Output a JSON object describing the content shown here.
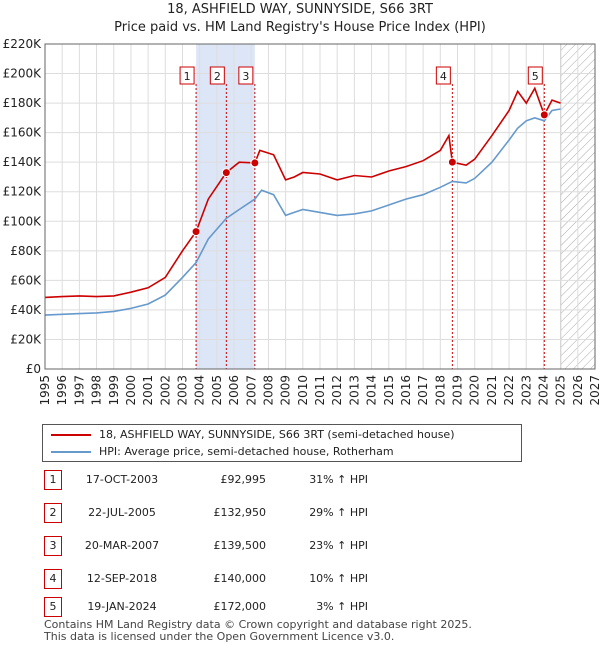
{
  "title": "18, ASHFIELD WAY, SUNNYSIDE, S66 3RT",
  "subtitle": "Price paid vs. HM Land Registry's House Price Index (HPI)",
  "colors": {
    "red": "#cc0000",
    "blue": "#6699cc",
    "shade": "#dde6f7",
    "grid": "#dddddd"
  },
  "chart_data": {
    "type": "line",
    "xlim": [
      1995,
      2027
    ],
    "ylim": [
      0,
      220000
    ],
    "x_ticks": [
      "1995",
      "1996",
      "1997",
      "1998",
      "1999",
      "2000",
      "2001",
      "2002",
      "2003",
      "2004",
      "2005",
      "2006",
      "2007",
      "2008",
      "2009",
      "2010",
      "2011",
      "2012",
      "2013",
      "2014",
      "2015",
      "2016",
      "2017",
      "2018",
      "2019",
      "2020",
      "2021",
      "2022",
      "2023",
      "2024",
      "2025",
      "2026",
      "2027"
    ],
    "y_ticks": [
      {
        "value": 0,
        "label": "£0"
      },
      {
        "value": 20000,
        "label": "£20K"
      },
      {
        "value": 40000,
        "label": "£40K"
      },
      {
        "value": 60000,
        "label": "£60K"
      },
      {
        "value": 80000,
        "label": "£80K"
      },
      {
        "value": 100000,
        "label": "£100K"
      },
      {
        "value": 120000,
        "label": "£120K"
      },
      {
        "value": 140000,
        "label": "£140K"
      },
      {
        "value": 160000,
        "label": "£160K"
      },
      {
        "value": 180000,
        "label": "£180K"
      },
      {
        "value": 200000,
        "label": "£200K"
      },
      {
        "value": 220000,
        "label": "£220K"
      }
    ],
    "shaded_range": [
      2003.79,
      2007.21
    ],
    "future_hatch_from": 2025.0,
    "series": [
      {
        "name": "18, ASHFIELD WAY, SUNNYSIDE, S66 3RT (semi-detached house)",
        "color": "#cc0000",
        "points": [
          [
            1995,
            48500
          ],
          [
            1996,
            49000
          ],
          [
            1997,
            49500
          ],
          [
            1998,
            49000
          ],
          [
            1999,
            49500
          ],
          [
            2000,
            52000
          ],
          [
            2001,
            55000
          ],
          [
            2002,
            62000
          ],
          [
            2003,
            80000
          ],
          [
            2003.79,
            92995
          ],
          [
            2004.5,
            115000
          ],
          [
            2005.55,
            132950
          ],
          [
            2006.3,
            140000
          ],
          [
            2007.21,
            139500
          ],
          [
            2007.5,
            148000
          ],
          [
            2008.3,
            145000
          ],
          [
            2009,
            128000
          ],
          [
            2009.5,
            130000
          ],
          [
            2010,
            133000
          ],
          [
            2011,
            132000
          ],
          [
            2012,
            128000
          ],
          [
            2013,
            131000
          ],
          [
            2014,
            130000
          ],
          [
            2015,
            134000
          ],
          [
            2016,
            137000
          ],
          [
            2017,
            141000
          ],
          [
            2018,
            148000
          ],
          [
            2018.5,
            158000
          ],
          [
            2018.7,
            140000
          ],
          [
            2019.5,
            138000
          ],
          [
            2020,
            142000
          ],
          [
            2021,
            158000
          ],
          [
            2022,
            175000
          ],
          [
            2022.5,
            188000
          ],
          [
            2023,
            180000
          ],
          [
            2023.5,
            190000
          ],
          [
            2024.05,
            172000
          ],
          [
            2024.5,
            182000
          ],
          [
            2025.0,
            180000
          ]
        ]
      },
      {
        "name": "HPI: Average price, semi-detached house, Rotherham",
        "color": "#6699cc",
        "points": [
          [
            1995,
            36500
          ],
          [
            1996,
            37000
          ],
          [
            1997,
            37500
          ],
          [
            1998,
            38000
          ],
          [
            1999,
            39000
          ],
          [
            2000,
            41000
          ],
          [
            2001,
            44000
          ],
          [
            2002,
            50000
          ],
          [
            2003,
            62000
          ],
          [
            2003.79,
            72000
          ],
          [
            2004.5,
            88000
          ],
          [
            2005.55,
            102000
          ],
          [
            2006.3,
            108000
          ],
          [
            2007.21,
            115000
          ],
          [
            2007.6,
            121000
          ],
          [
            2008.3,
            118000
          ],
          [
            2009,
            104000
          ],
          [
            2009.5,
            106000
          ],
          [
            2010,
            108000
          ],
          [
            2011,
            106000
          ],
          [
            2012,
            104000
          ],
          [
            2013,
            105000
          ],
          [
            2014,
            107000
          ],
          [
            2015,
            111000
          ],
          [
            2016,
            115000
          ],
          [
            2017,
            118000
          ],
          [
            2018,
            123000
          ],
          [
            2018.7,
            127000
          ],
          [
            2019.5,
            126000
          ],
          [
            2020,
            129000
          ],
          [
            2021,
            140000
          ],
          [
            2022,
            155000
          ],
          [
            2022.5,
            163000
          ],
          [
            2023,
            168000
          ],
          [
            2023.5,
            170000
          ],
          [
            2024.05,
            168000
          ],
          [
            2024.5,
            175000
          ],
          [
            2025.0,
            176000
          ]
        ]
      }
    ],
    "sales": [
      {
        "num": "1",
        "x": 2003.79,
        "value": 92995
      },
      {
        "num": "2",
        "x": 2005.55,
        "value": 132950
      },
      {
        "num": "3",
        "x": 2007.21,
        "value": 139500
      },
      {
        "num": "4",
        "x": 2018.7,
        "value": 140000
      },
      {
        "num": "5",
        "x": 2024.05,
        "value": 172000
      }
    ]
  },
  "legend": {
    "red_label": "18, ASHFIELD WAY, SUNNYSIDE, S66 3RT (semi-detached house)",
    "blue_label": "HPI: Average price, semi-detached house, Rotherham"
  },
  "sales_table": [
    {
      "num": "1",
      "date": "17-OCT-2003",
      "price": "£92,995",
      "hpi": "31% ↑ HPI"
    },
    {
      "num": "2",
      "date": "22-JUL-2005",
      "price": "£132,950",
      "hpi": "29% ↑ HPI"
    },
    {
      "num": "3",
      "date": "20-MAR-2007",
      "price": "£139,500",
      "hpi": "23% ↑ HPI"
    },
    {
      "num": "4",
      "date": "12-SEP-2018",
      "price": "£140,000",
      "hpi": "10% ↑ HPI"
    },
    {
      "num": "5",
      "date": "19-JAN-2024",
      "price": "£172,000",
      "hpi": "3% ↑ HPI"
    }
  ],
  "footer": {
    "line1": "Contains HM Land Registry data © Crown copyright and database right 2025.",
    "line2": "This data is licensed under the Open Government Licence v3.0."
  }
}
